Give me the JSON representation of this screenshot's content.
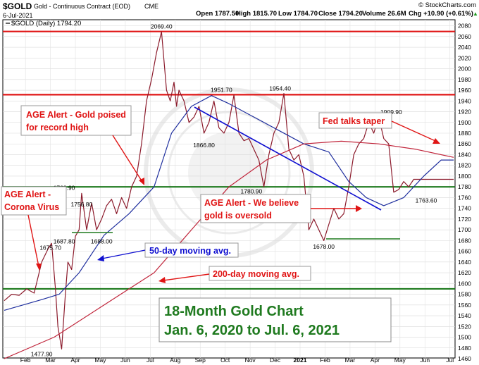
{
  "header": {
    "symbol": "$GOLD",
    "name": "Gold - Continuous Contract (EOD)",
    "exchange": "CME",
    "date": "6-Jul-2021",
    "open": "Open 1787.50",
    "high": "High 1815.70",
    "low": "Low 1784.70",
    "close": "Close 1794.20",
    "volume": "Volume 26.6M",
    "chg": "Chg +10.90 (+0.61%)",
    "chg_arrow": "▲",
    "source": "© StockCharts.com",
    "legend": "$GOLD (Daily) 1794.20"
  },
  "colors": {
    "price": "#8b1a2b",
    "ma50": "#1f2f9e",
    "ma200": "#c0243a",
    "hline_red": "#e01515",
    "hline_green": "#1e7a1e",
    "annotation": "#e01515",
    "blue_annotation": "#1010d0",
    "title_green": "#1f7a1f"
  },
  "chart_data": {
    "type": "line",
    "title": "18-Month Gold Chart",
    "subtitle": "Jan. 6, 2020 to Jul. 6, 2021",
    "ylim": [
      1460,
      2090
    ],
    "yticks": [
      1460,
      1480,
      1500,
      1520,
      1540,
      1560,
      1580,
      1600,
      1620,
      1640,
      1660,
      1680,
      1700,
      1720,
      1740,
      1760,
      1780,
      1800,
      1820,
      1840,
      1860,
      1880,
      1900,
      1920,
      1940,
      1960,
      1980,
      2000,
      2020,
      2040,
      2060,
      2080
    ],
    "xlim": [
      0,
      18
    ],
    "xticks": [
      {
        "x": 0.85,
        "label": "Feb"
      },
      {
        "x": 1.85,
        "label": "Mar"
      },
      {
        "x": 2.85,
        "label": "Apr"
      },
      {
        "x": 3.85,
        "label": "May"
      },
      {
        "x": 4.85,
        "label": "Jun"
      },
      {
        "x": 5.85,
        "label": "Jul"
      },
      {
        "x": 6.85,
        "label": "Aug"
      },
      {
        "x": 7.85,
        "label": "Sep"
      },
      {
        "x": 8.85,
        "label": "Oct"
      },
      {
        "x": 9.85,
        "label": "Nov"
      },
      {
        "x": 10.85,
        "label": "Dec"
      },
      {
        "x": 11.85,
        "label": "2021"
      },
      {
        "x": 12.85,
        "label": "Feb"
      },
      {
        "x": 13.85,
        "label": "Mar"
      },
      {
        "x": 14.85,
        "label": "Apr"
      },
      {
        "x": 15.85,
        "label": "May"
      },
      {
        "x": 16.85,
        "label": "Jun"
      },
      {
        "x": 17.85,
        "label": "Jul"
      }
    ],
    "series": [
      {
        "name": "$GOLD (Daily)",
        "x": [
          0,
          0.3,
          0.6,
          0.9,
          1.2,
          1.5,
          1.75,
          1.9,
          2.05,
          2.15,
          2.3,
          2.45,
          2.55,
          2.7,
          2.85,
          3.0,
          3.1,
          3.3,
          3.5,
          3.7,
          3.9,
          4.1,
          4.3,
          4.5,
          4.7,
          4.9,
          5.1,
          5.3,
          5.5,
          5.7,
          5.9,
          6.1,
          6.3,
          6.5,
          6.65,
          6.8,
          6.9,
          7.0,
          7.2,
          7.4,
          7.6,
          7.8,
          8.0,
          8.2,
          8.4,
          8.6,
          8.8,
          9.0,
          9.2,
          9.4,
          9.6,
          9.8,
          10.0,
          10.2,
          10.4,
          10.6,
          10.8,
          11.0,
          11.2,
          11.4,
          11.6,
          11.8,
          12.0,
          12.2,
          12.4,
          12.6,
          12.8,
          13.0,
          13.2,
          13.4,
          13.6,
          13.8,
          14.0,
          14.2,
          14.4,
          14.6,
          14.8,
          15.0,
          15.2,
          15.4,
          15.6,
          15.8,
          16.0,
          16.2,
          16.4,
          16.6,
          16.8,
          17.0,
          17.2,
          17.4,
          17.6,
          17.8,
          18.0
        ],
        "values": [
          1568,
          1580,
          1578,
          1590,
          1582,
          1640,
          1664,
          1675,
          1590,
          1520,
          1478,
          1580,
          1640,
          1626,
          1688,
          1700,
          1768,
          1700,
          1750,
          1700,
          1720,
          1745,
          1757,
          1730,
          1760,
          1740,
          1780,
          1800,
          1860,
          1940,
          1980,
          2030,
          2069,
          1960,
          1940,
          1975,
          1930,
          1960,
          1940,
          1900,
          1910,
          1930,
          1880,
          1900,
          1940,
          1890,
          1880,
          1900,
          1951,
          1880,
          1866,
          1870,
          1850,
          1830,
          1780,
          1840,
          1880,
          1900,
          1954,
          1850,
          1830,
          1840,
          1800,
          1700,
          1720,
          1700,
          1680,
          1710,
          1740,
          1720,
          1730,
          1780,
          1840,
          1860,
          1870,
          1900,
          1880,
          1910,
          1870,
          1860,
          1770,
          1775,
          1790,
          1780,
          1794,
          1794,
          1794,
          1794,
          1794,
          1794,
          1794,
          1794,
          1794
        ]
      },
      {
        "name": "50-day moving avg.",
        "x": [
          0,
          1.5,
          2.2,
          3.0,
          4.0,
          5.0,
          6.0,
          6.7,
          7.5,
          8.3,
          9.0,
          10.0,
          11.0,
          12.0,
          13.0,
          13.8,
          14.5,
          15.2,
          16.0,
          16.8,
          17.5,
          18.0
        ],
        "values": [
          1550,
          1570,
          1580,
          1620,
          1690,
          1730,
          1780,
          1880,
          1930,
          1950,
          1935,
          1910,
          1885,
          1860,
          1845,
          1790,
          1760,
          1745,
          1760,
          1800,
          1830,
          1830
        ]
      },
      {
        "name": "200-day moving avg.",
        "x": [
          0,
          2.0,
          4.0,
          6.0,
          7.5,
          9.0,
          10.5,
          12.0,
          13.5,
          15.0,
          16.5,
          18.0
        ],
        "values": [
          1460,
          1500,
          1560,
          1620,
          1700,
          1780,
          1830,
          1860,
          1865,
          1860,
          1850,
          1835
        ]
      }
    ],
    "hlines": [
      {
        "y": 2069.4,
        "color": "red"
      },
      {
        "y": 1951.7,
        "color": "red"
      },
      {
        "y": 1780,
        "color": "green"
      },
      {
        "y": 1590,
        "color": "green"
      }
    ],
    "price_labels": [
      {
        "x": 6.3,
        "y": 2069.4,
        "text": "2069.40"
      },
      {
        "x": 8.7,
        "y": 1951.7,
        "text": "1951.70"
      },
      {
        "x": 11.05,
        "y": 1954.4,
        "text": "1954.40"
      },
      {
        "x": 8.0,
        "y": 1866.8,
        "text": "1866.80"
      },
      {
        "x": 9.9,
        "y": 1780.9,
        "text": "1780.90"
      },
      {
        "x": 2.4,
        "y": 1768.9,
        "text": "1768.90"
      },
      {
        "x": 3.1,
        "y": 1756.8,
        "text": "1756.80"
      },
      {
        "x": 1.85,
        "y": 1675.7,
        "text": "1675.70"
      },
      {
        "x": 2.4,
        "y": 1687.8,
        "text": "1687.80"
      },
      {
        "x": 3.9,
        "y": 1688.0,
        "text": "1688.00"
      },
      {
        "x": 1.5,
        "y": 1477.9,
        "text": "1477.90"
      },
      {
        "x": 12.8,
        "y": 1678.0,
        "text": "1678.00"
      },
      {
        "x": 15.5,
        "y": 1909.9,
        "text": "1909.90"
      },
      {
        "x": 16.9,
        "y": 1763.6,
        "text": "1763.60"
      }
    ]
  },
  "annotations": {
    "age_record": [
      "AGE Alert - Gold poised",
      "for record high"
    ],
    "age_corona": [
      "AGE Alert -",
      "Corona Virus"
    ],
    "age_oversold": [
      "AGE Alert - We believe",
      "gold is oversold"
    ],
    "fed": "Fed talks taper",
    "ma50": "50-day moving avg.",
    "ma200": "200-day moving avg."
  }
}
